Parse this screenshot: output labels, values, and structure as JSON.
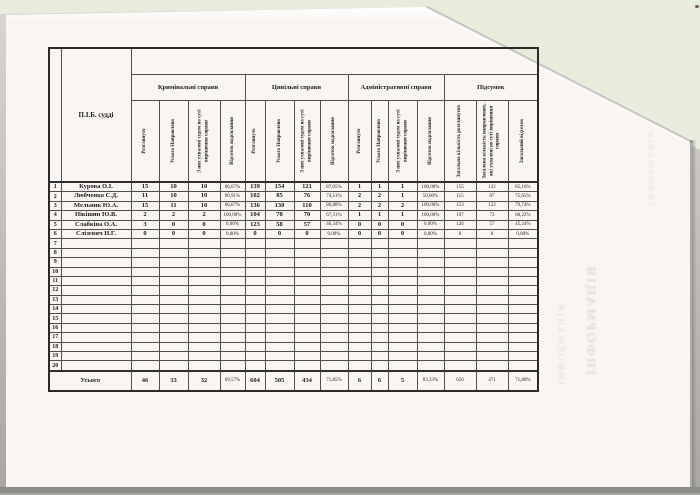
{
  "artifacts": {
    "bleed_text": "ІНФОРМАЦІЯ"
  },
  "table": {
    "corner_header": "П.І.Б. судді",
    "groups": [
      {
        "label": "Кримінальні справи"
      },
      {
        "label": "Цивільні справи"
      },
      {
        "label": "Адміністративні справи"
      },
      {
        "label": "Підсумок"
      }
    ],
    "sub_headers_case": [
      "Розглянуто",
      "Усього Направлено",
      "З них ухвалені судом по суті вирішення справи",
      "Відсоток надсилання"
    ],
    "sub_headers_summary": [
      "Загальна кількість розглянутих",
      "Загальна кількість направлених, які ухвалені по суті вирішення справи",
      "Загальний відсоток"
    ],
    "rows": [
      {
        "num": "1",
        "name": "Курова О.І.",
        "values": [
          "15",
          "10",
          "10",
          "66,67%",
          "139",
          "154",
          "121",
          "87,05%",
          "1",
          "1",
          "1",
          "100,00%",
          "155",
          "132",
          "85,16%"
        ]
      },
      {
        "num": "2",
        "name": "Любченко С.Д.",
        "values": [
          "11",
          "10",
          "10",
          "90,91%",
          "102",
          "85",
          "76",
          "74,51%",
          "2",
          "2",
          "1",
          "50,00%",
          "115",
          "87",
          "75,65%"
        ]
      },
      {
        "num": "3",
        "name": "Мельник Ю.А.",
        "values": [
          "15",
          "11",
          "10",
          "66,67%",
          "136",
          "130",
          "110",
          "80,88%",
          "2",
          "2",
          "2",
          "100,00%",
          "153",
          "122",
          "79,74%"
        ]
      },
      {
        "num": "4",
        "name": "Нікішин Ю.В.",
        "values": [
          "2",
          "2",
          "2",
          "100,00%",
          "104",
          "78",
          "70",
          "67,31%",
          "1",
          "1",
          "1",
          "100,00%",
          "107",
          "73",
          "68,22%"
        ]
      },
      {
        "num": "5",
        "name": "Слабкіна О.А.",
        "values": [
          "3",
          "0",
          "0",
          "0,00%",
          "123",
          "58",
          "57",
          "46,34%",
          "0",
          "0",
          "0",
          "0,00%",
          "126",
          "57",
          "45,24%"
        ]
      },
      {
        "num": "6",
        "name": "Слізевич Н.Г.",
        "values": [
          "0",
          "0",
          "0",
          "0,00%",
          "0",
          "0",
          "0",
          "0,00%",
          "0",
          "0",
          "0",
          "0,00%",
          "0",
          "0",
          "0,00%"
        ]
      },
      {
        "num": "7",
        "name": "",
        "values": [
          "",
          "",
          "",
          "",
          "",
          "",
          "",
          "",
          "",
          "",
          "",
          "",
          "",
          "",
          ""
        ]
      },
      {
        "num": "8",
        "name": "",
        "values": [
          "",
          "",
          "",
          "",
          "",
          "",
          "",
          "",
          "",
          "",
          "",
          "",
          "",
          "",
          ""
        ]
      },
      {
        "num": "9",
        "name": "",
        "values": [
          "",
          "",
          "",
          "",
          "",
          "",
          "",
          "",
          "",
          "",
          "",
          "",
          "",
          "",
          ""
        ]
      },
      {
        "num": "10",
        "name": "",
        "values": [
          "",
          "",
          "",
          "",
          "",
          "",
          "",
          "",
          "",
          "",
          "",
          "",
          "",
          "",
          ""
        ]
      },
      {
        "num": "11",
        "name": "",
        "values": [
          "",
          "",
          "",
          "",
          "",
          "",
          "",
          "",
          "",
          "",
          "",
          "",
          "",
          "",
          ""
        ]
      },
      {
        "num": "12",
        "name": "",
        "values": [
          "",
          "",
          "",
          "",
          "",
          "",
          "",
          "",
          "",
          "",
          "",
          "",
          "",
          "",
          ""
        ]
      },
      {
        "num": "13",
        "name": "",
        "values": [
          "",
          "",
          "",
          "",
          "",
          "",
          "",
          "",
          "",
          "",
          "",
          "",
          "",
          "",
          ""
        ]
      },
      {
        "num": "14",
        "name": "",
        "values": [
          "",
          "",
          "",
          "",
          "",
          "",
          "",
          "",
          "",
          "",
          "",
          "",
          "",
          "",
          ""
        ]
      },
      {
        "num": "15",
        "name": "",
        "values": [
          "",
          "",
          "",
          "",
          "",
          "",
          "",
          "",
          "",
          "",
          "",
          "",
          "",
          "",
          ""
        ]
      },
      {
        "num": "16",
        "name": "",
        "values": [
          "",
          "",
          "",
          "",
          "",
          "",
          "",
          "",
          "",
          "",
          "",
          "",
          "",
          "",
          ""
        ]
      },
      {
        "num": "17",
        "name": "",
        "values": [
          "",
          "",
          "",
          "",
          "",
          "",
          "",
          "",
          "",
          "",
          "",
          "",
          "",
          "",
          ""
        ]
      },
      {
        "num": "18",
        "name": "",
        "values": [
          "",
          "",
          "",
          "",
          "",
          "",
          "",
          "",
          "",
          "",
          "",
          "",
          "",
          "",
          ""
        ]
      },
      {
        "num": "19",
        "name": "",
        "values": [
          "",
          "",
          "",
          "",
          "",
          "",
          "",
          "",
          "",
          "",
          "",
          "",
          "",
          "",
          ""
        ]
      },
      {
        "num": "20",
        "name": "",
        "values": [
          "",
          "",
          "",
          "",
          "",
          "",
          "",
          "",
          "",
          "",
          "",
          "",
          "",
          "",
          ""
        ]
      }
    ],
    "total": {
      "label": "Усього",
      "values": [
        "46",
        "33",
        "32",
        "69,57%",
        "604",
        "505",
        "434",
        "71,85%",
        "6",
        "6",
        "5",
        "83,33%",
        "656",
        "471",
        "71,80%"
      ]
    }
  }
}
